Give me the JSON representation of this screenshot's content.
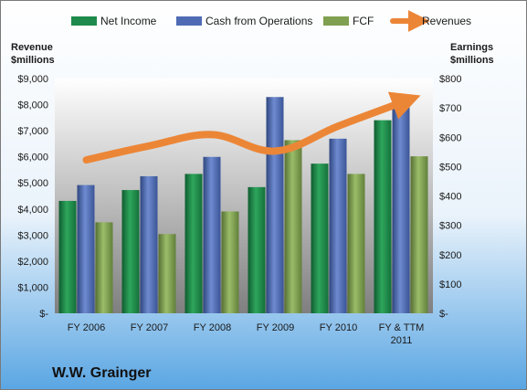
{
  "chart_data": {
    "type": "bar",
    "categories": [
      [
        "FY 2006"
      ],
      [
        "FY 2007"
      ],
      [
        "FY 2008"
      ],
      [
        "FY 2009"
      ],
      [
        "FY 2010"
      ],
      [
        "FY & TTM",
        "2011"
      ]
    ],
    "series": [
      {
        "name": "Net Income",
        "axis": "right",
        "values": [
          383,
          420,
          475,
          430,
          510,
          658
        ],
        "color": "#1e8a4c"
      },
      {
        "name": "Cash from Operations",
        "axis": "right",
        "values": [
          437,
          467,
          533,
          737,
          595,
          726
        ],
        "color": "#4f6bb4"
      },
      {
        "name": "FCF",
        "axis": "right",
        "values": [
          310,
          270,
          347,
          590,
          475,
          535
        ],
        "color": "#7fa050"
      },
      {
        "name": "Revenues",
        "type": "line",
        "axis": "left",
        "values": [
          5880,
          6420,
          6850,
          6220,
          7180,
          8080
        ],
        "color": "#ec8637"
      }
    ],
    "y_left": {
      "label": [
        "Revenue",
        "$millions"
      ],
      "min": 0,
      "max": 9000,
      "step": 1000,
      "ticks": [
        "$-",
        "$1,000",
        "$2,000",
        "$3,000",
        "$4,000",
        "$5,000",
        "$6,000",
        "$7,000",
        "$8,000",
        "$9,000"
      ]
    },
    "y_right": {
      "label": [
        "Earnings",
        "$millions"
      ],
      "min": 0,
      "max": 800,
      "step": 100,
      "ticks": [
        "$-",
        "$100",
        "$200",
        "$300",
        "$400",
        "$500",
        "$600",
        "$700",
        "$800"
      ]
    },
    "legend_position": "top",
    "company": "W.W. Grainger",
    "grid": false
  }
}
